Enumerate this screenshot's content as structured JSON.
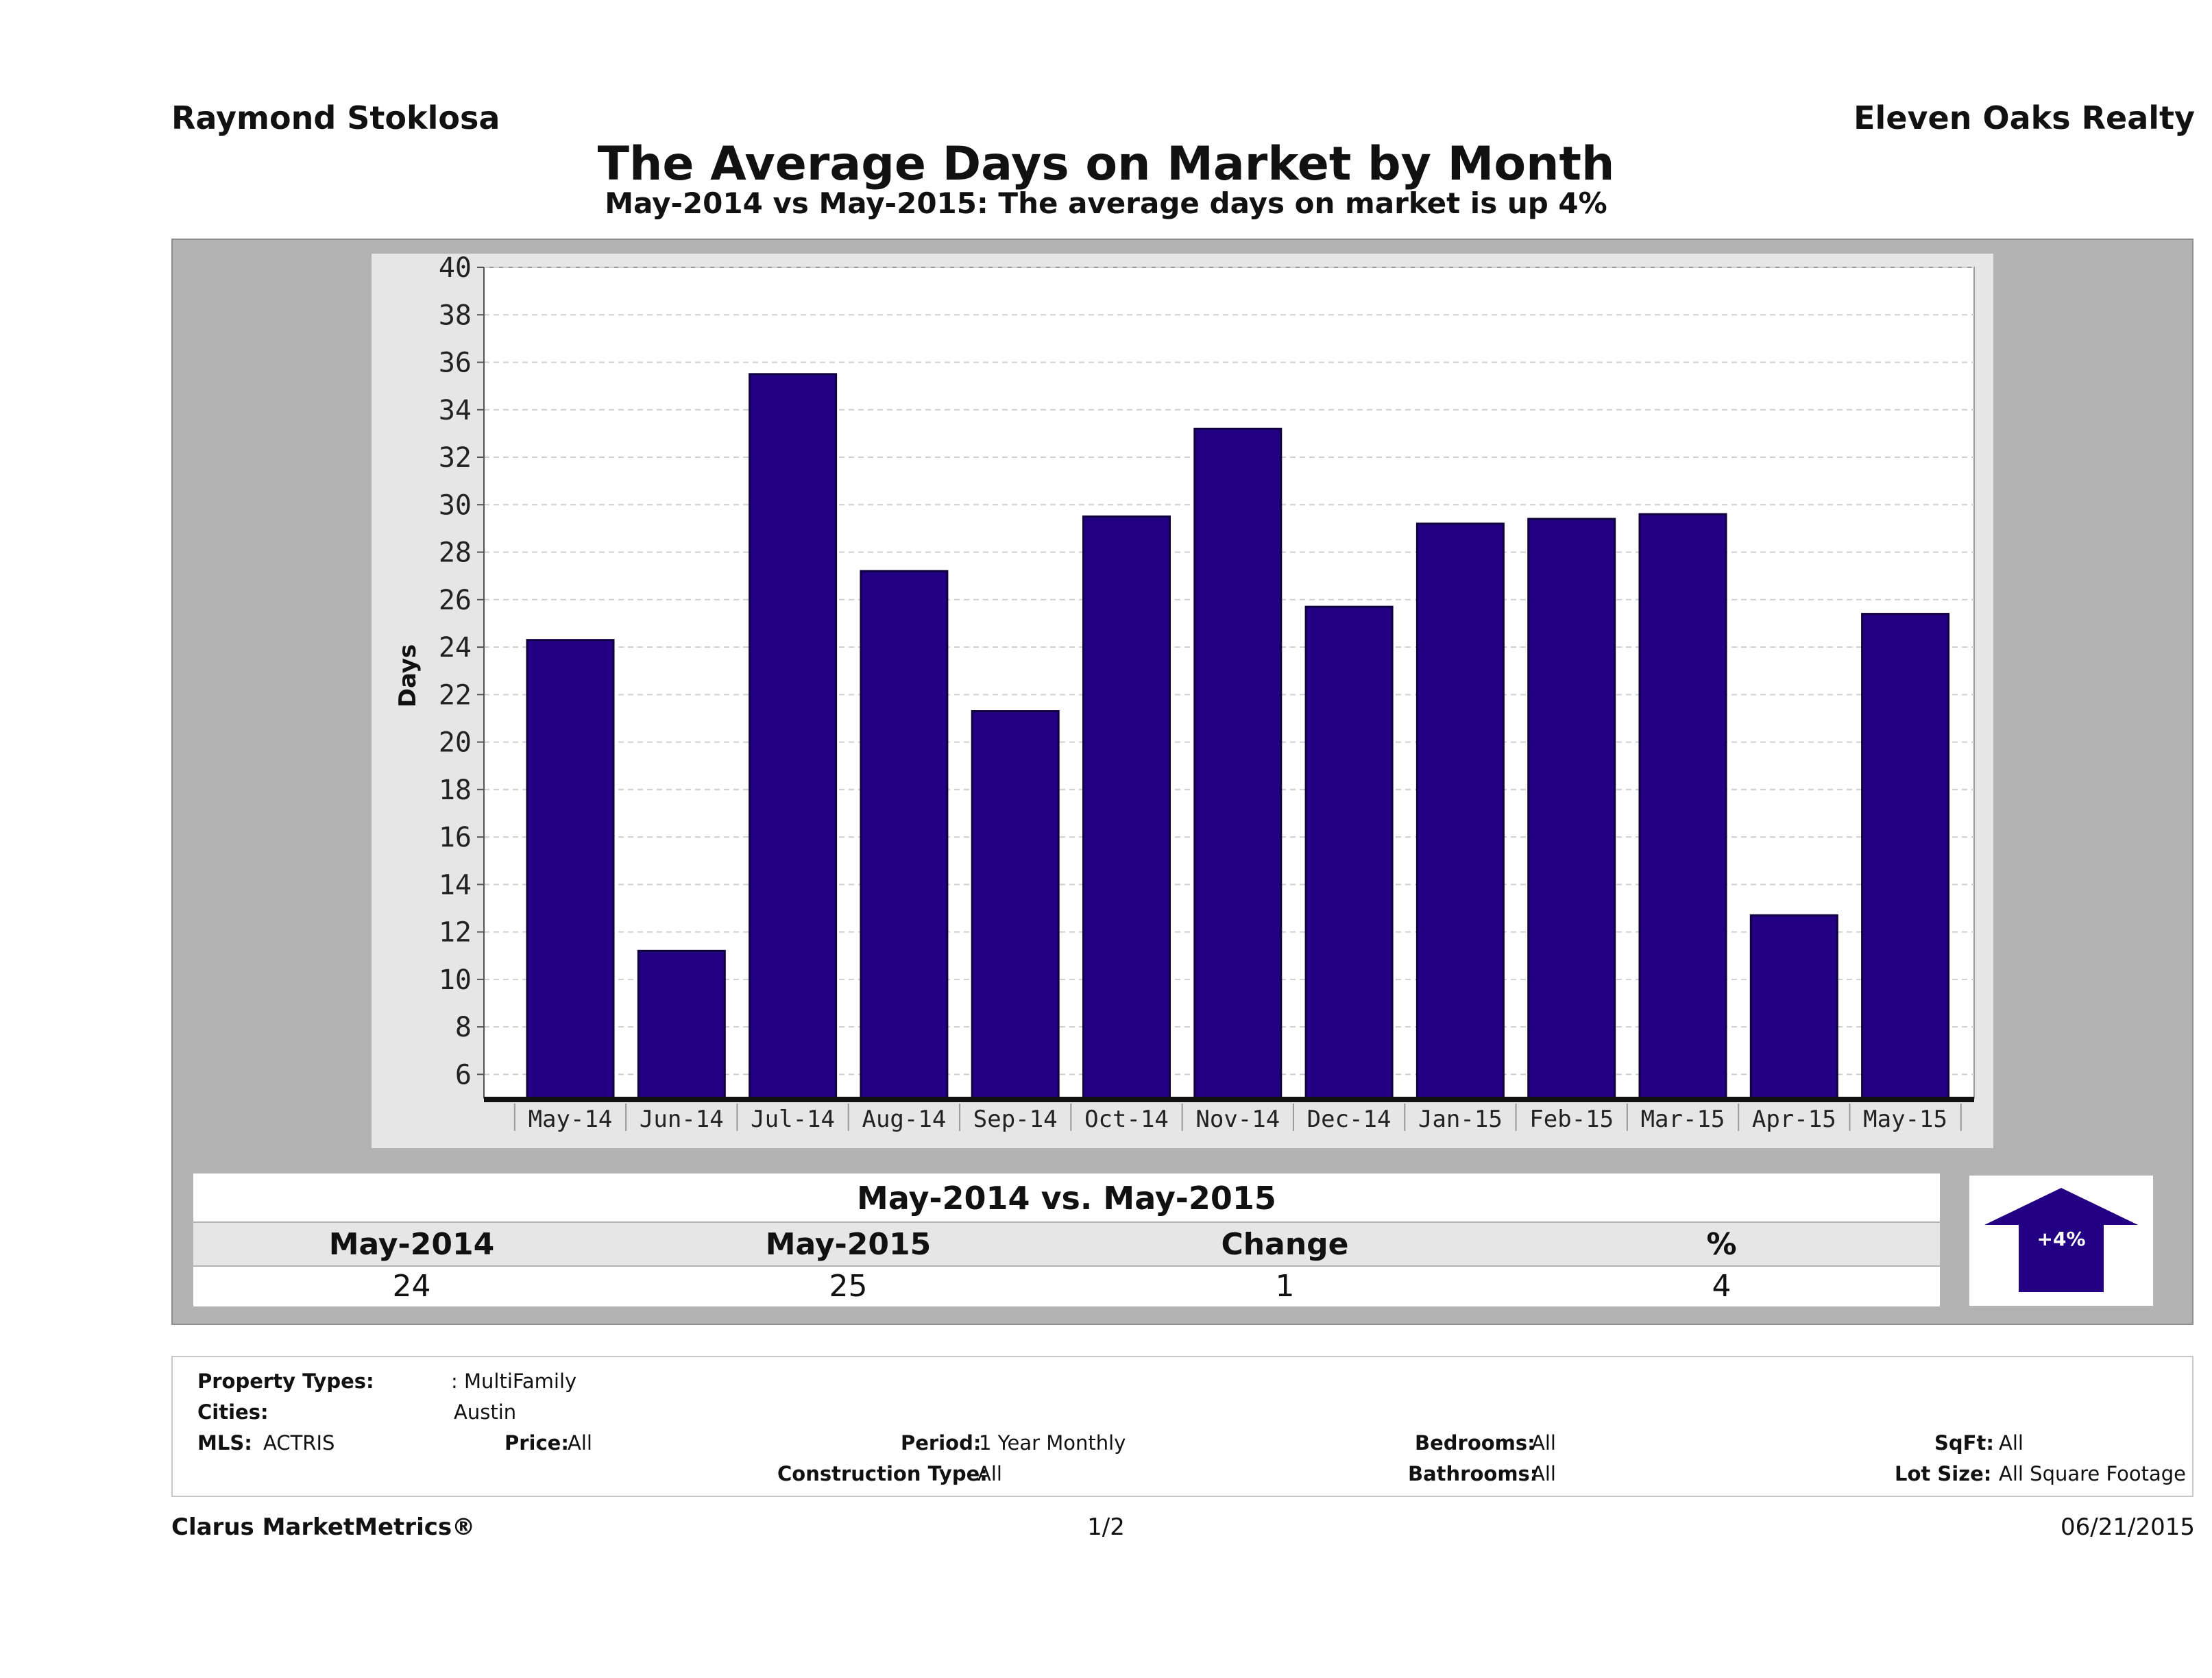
{
  "header": {
    "agent": "Raymond Stoklosa",
    "company": "Eleven Oaks Realty",
    "title": "The Average Days on Market by Month",
    "subtitle": "May-2014 vs May-2015: The average days on market is up 4%"
  },
  "chart_data": {
    "type": "bar",
    "ylabel": "Days",
    "xlabel": "",
    "ylim": [
      5,
      40
    ],
    "yticks": [
      6,
      8,
      10,
      12,
      14,
      16,
      18,
      20,
      22,
      24,
      26,
      28,
      30,
      32,
      34,
      36,
      38,
      40
    ],
    "grid": true,
    "categories": [
      "May-14",
      "Jun-14",
      "Jul-14",
      "Aug-14",
      "Sep-14",
      "Oct-14",
      "Nov-14",
      "Dec-14",
      "Jan-15",
      "Feb-15",
      "Mar-15",
      "Apr-15",
      "May-15"
    ],
    "values": [
      24.3,
      11.2,
      35.5,
      27.2,
      21.3,
      29.5,
      33.2,
      25.7,
      29.2,
      29.4,
      29.6,
      12.7,
      25.4
    ],
    "bar_color": "#230083"
  },
  "comparison": {
    "heading": "May-2014 vs. May-2015",
    "columns": [
      "May-2014",
      "May-2015",
      "Change",
      "%"
    ],
    "values": [
      "24",
      "25",
      "1",
      "4"
    ],
    "badge": "+4%",
    "arrow_color": "#230083"
  },
  "filters": {
    "property_types_label": "Property Types:",
    "property_types_value": ": MultiFamily",
    "cities_label": "Cities:",
    "cities_value": "Austin",
    "mls_label": "MLS:",
    "mls_value": "ACTRIS",
    "price_label": "Price:",
    "price_value": "All",
    "period_label": "Period:",
    "period_value": "1 Year Monthly",
    "construction_label": "Construction Type:",
    "construction_value": "All",
    "bedrooms_label": "Bedrooms:",
    "bedrooms_value": "All",
    "bathrooms_label": "Bathrooms:",
    "bathrooms_value": "All",
    "sqft_label": "SqFt:",
    "sqft_value": "All",
    "lotsize_label": "Lot Size:",
    "lotsize_value": "All Square Footage"
  },
  "footer": {
    "brand": "Clarus MarketMetrics®",
    "page": "1/2",
    "date": "06/21/2015"
  }
}
